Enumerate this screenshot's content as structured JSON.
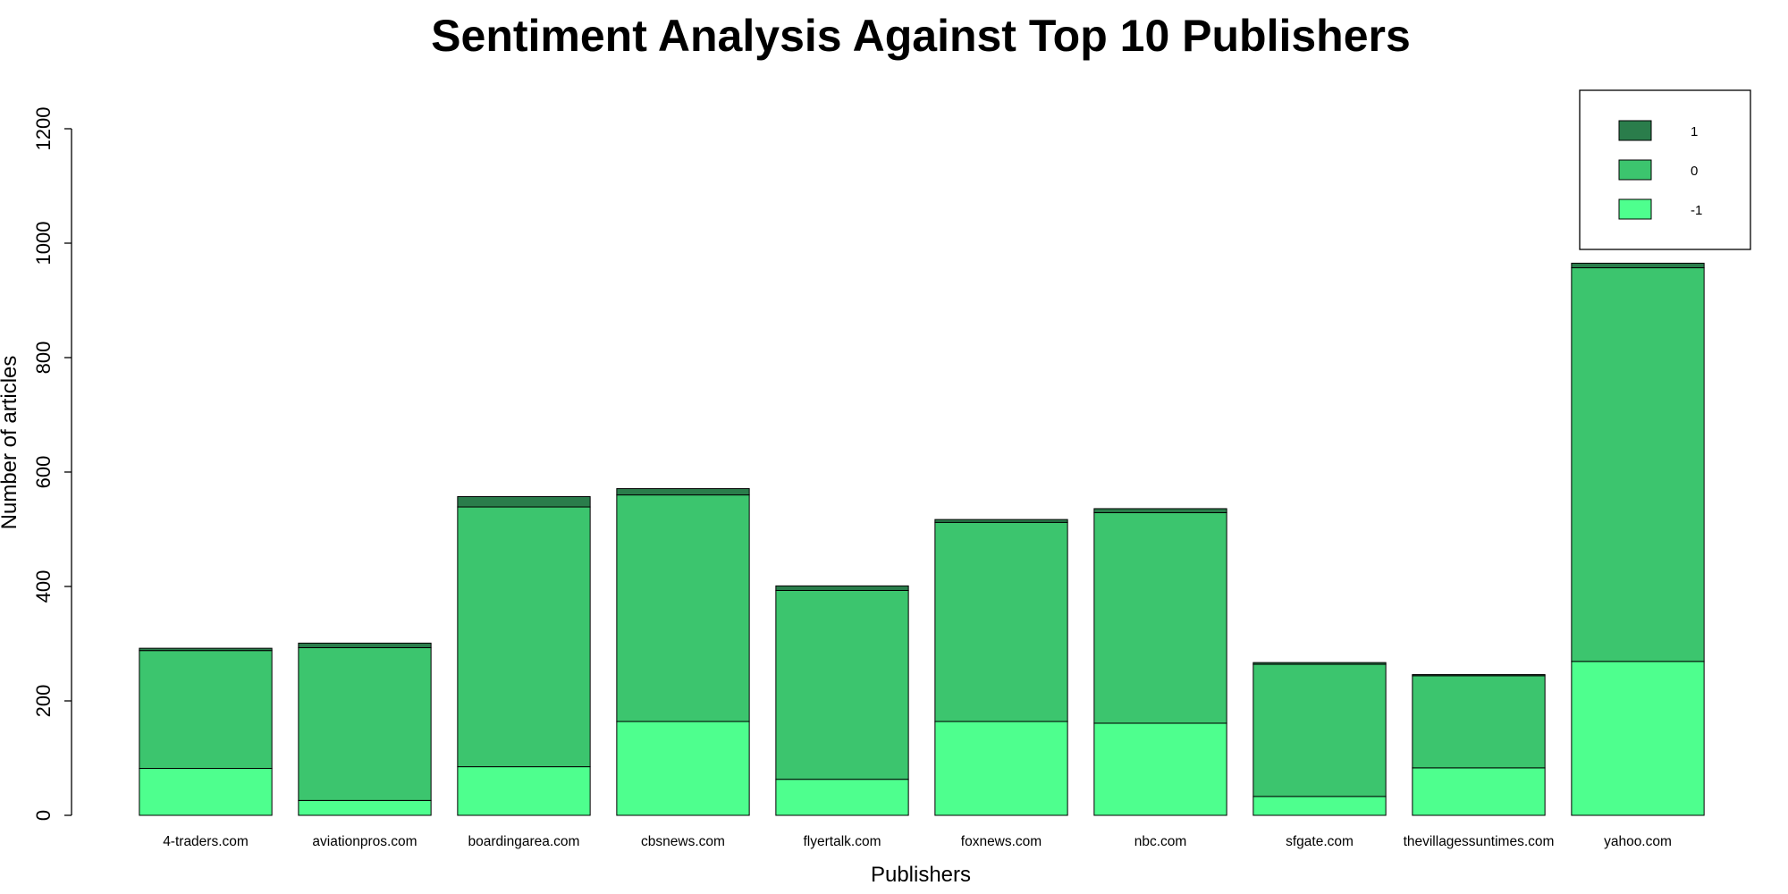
{
  "chart_data": {
    "type": "bar",
    "stacked": true,
    "title": "Sentiment Analysis Against Top 10 Publishers",
    "xlabel": "Publishers",
    "ylabel": "Number of articles",
    "ylim": [
      0,
      1200
    ],
    "yticks": [
      "0",
      "200",
      "400",
      "600",
      "800",
      "1000",
      "1200"
    ],
    "categories": [
      "4-traders.com",
      "aviationpros.com",
      "boardingarea.com",
      "cbsnews.com",
      "flyertalk.com",
      "foxnews.com",
      "nbc.com",
      "sfgate.com",
      "thevillagessuntimes.com",
      "yahoo.com"
    ],
    "series": [
      {
        "name": "-1",
        "color": "#4eff8e",
        "values": [
          82,
          26,
          85,
          164,
          63,
          164,
          161,
          33,
          83,
          269
        ]
      },
      {
        "name": "0",
        "color": "#3cc56e",
        "values": [
          206,
          267,
          454,
          396,
          330,
          348,
          368,
          231,
          161,
          688
        ]
      },
      {
        "name": "1",
        "color": "#2a7d4b",
        "values": [
          4,
          8,
          18,
          11,
          8,
          5,
          7,
          3,
          2,
          8
        ]
      }
    ],
    "legend": {
      "position": "top-right",
      "order": [
        "1",
        "0",
        "-1"
      ]
    },
    "grid": false
  }
}
